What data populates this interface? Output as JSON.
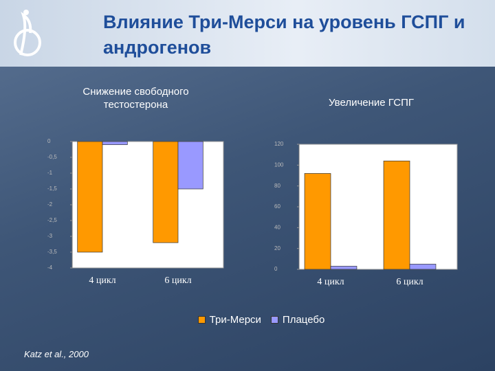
{
  "header": {
    "title": "Влияние Три-Мерси на уровень ГСПГ и андрогенов"
  },
  "chart_data": [
    {
      "type": "bar",
      "title": "Снижение свободного тестостерона",
      "categories": [
        "4 цикл",
        "6 цикл"
      ],
      "series": [
        {
          "name": "Три-Мерси",
          "color": "#ff9900",
          "values": [
            -3.5,
            -3.2
          ]
        },
        {
          "name": "Плацебо",
          "color": "#9999ff",
          "values": [
            -0.1,
            -1.5
          ]
        }
      ],
      "ylim": [
        -4,
        0
      ],
      "yticks": [
        0,
        {
          "value": -0.5,
          "label": "-0,5"
        },
        -1,
        {
          "value": -1.5,
          "label": "-1,5"
        },
        -2,
        {
          "value": -2.5,
          "label": "-2,5"
        },
        -3,
        {
          "value": -3.5,
          "label": "-3,5"
        },
        -4
      ]
    },
    {
      "type": "bar",
      "title": "Увеличение ГСПГ",
      "categories": [
        "4 цикл",
        "6 цикл"
      ],
      "series": [
        {
          "name": "Три-Мерси",
          "color": "#ff9900",
          "values": [
            92,
            104
          ]
        },
        {
          "name": "Плацебо",
          "color": "#9999ff",
          "values": [
            3,
            5
          ]
        }
      ],
      "ylim": [
        0,
        120
      ],
      "yticks": [
        0,
        20,
        40,
        60,
        80,
        100,
        120
      ]
    }
  ],
  "citation": {
    "authors": "Katz et al.,",
    "year": "2000"
  }
}
